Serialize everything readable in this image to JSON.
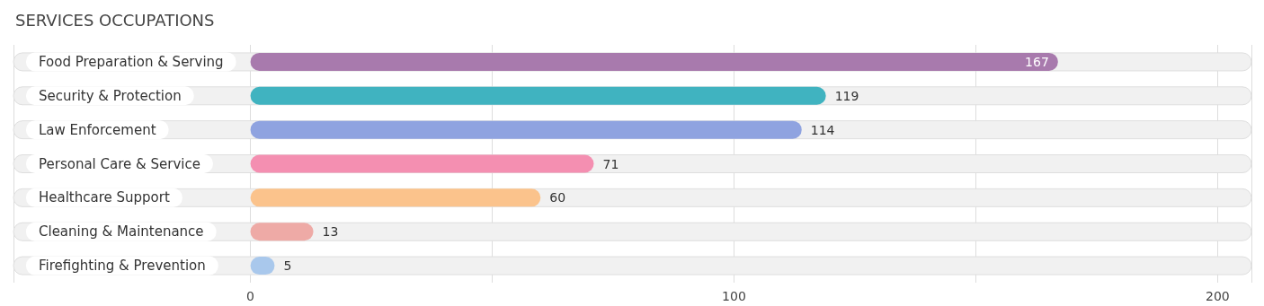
{
  "chart_data": {
    "type": "bar",
    "title": "SERVICES OCCUPATIONS",
    "orientation": "horizontal",
    "categories": [
      "Food Preparation & Serving",
      "Security & Protection",
      "Law Enforcement",
      "Personal Care & Service",
      "Healthcare Support",
      "Cleaning & Maintenance",
      "Firefighting & Prevention"
    ],
    "values": [
      167,
      119,
      114,
      71,
      60,
      13,
      5
    ],
    "colors": [
      "#a87aad",
      "#40b3c0",
      "#8fa3e0",
      "#f48fb1",
      "#fbc38c",
      "#eeaaa6",
      "#a9c8ec"
    ],
    "xlim": [
      -49,
      207
    ],
    "xticks": [
      0,
      100,
      200
    ],
    "grid": "x",
    "data_labels": true
  }
}
